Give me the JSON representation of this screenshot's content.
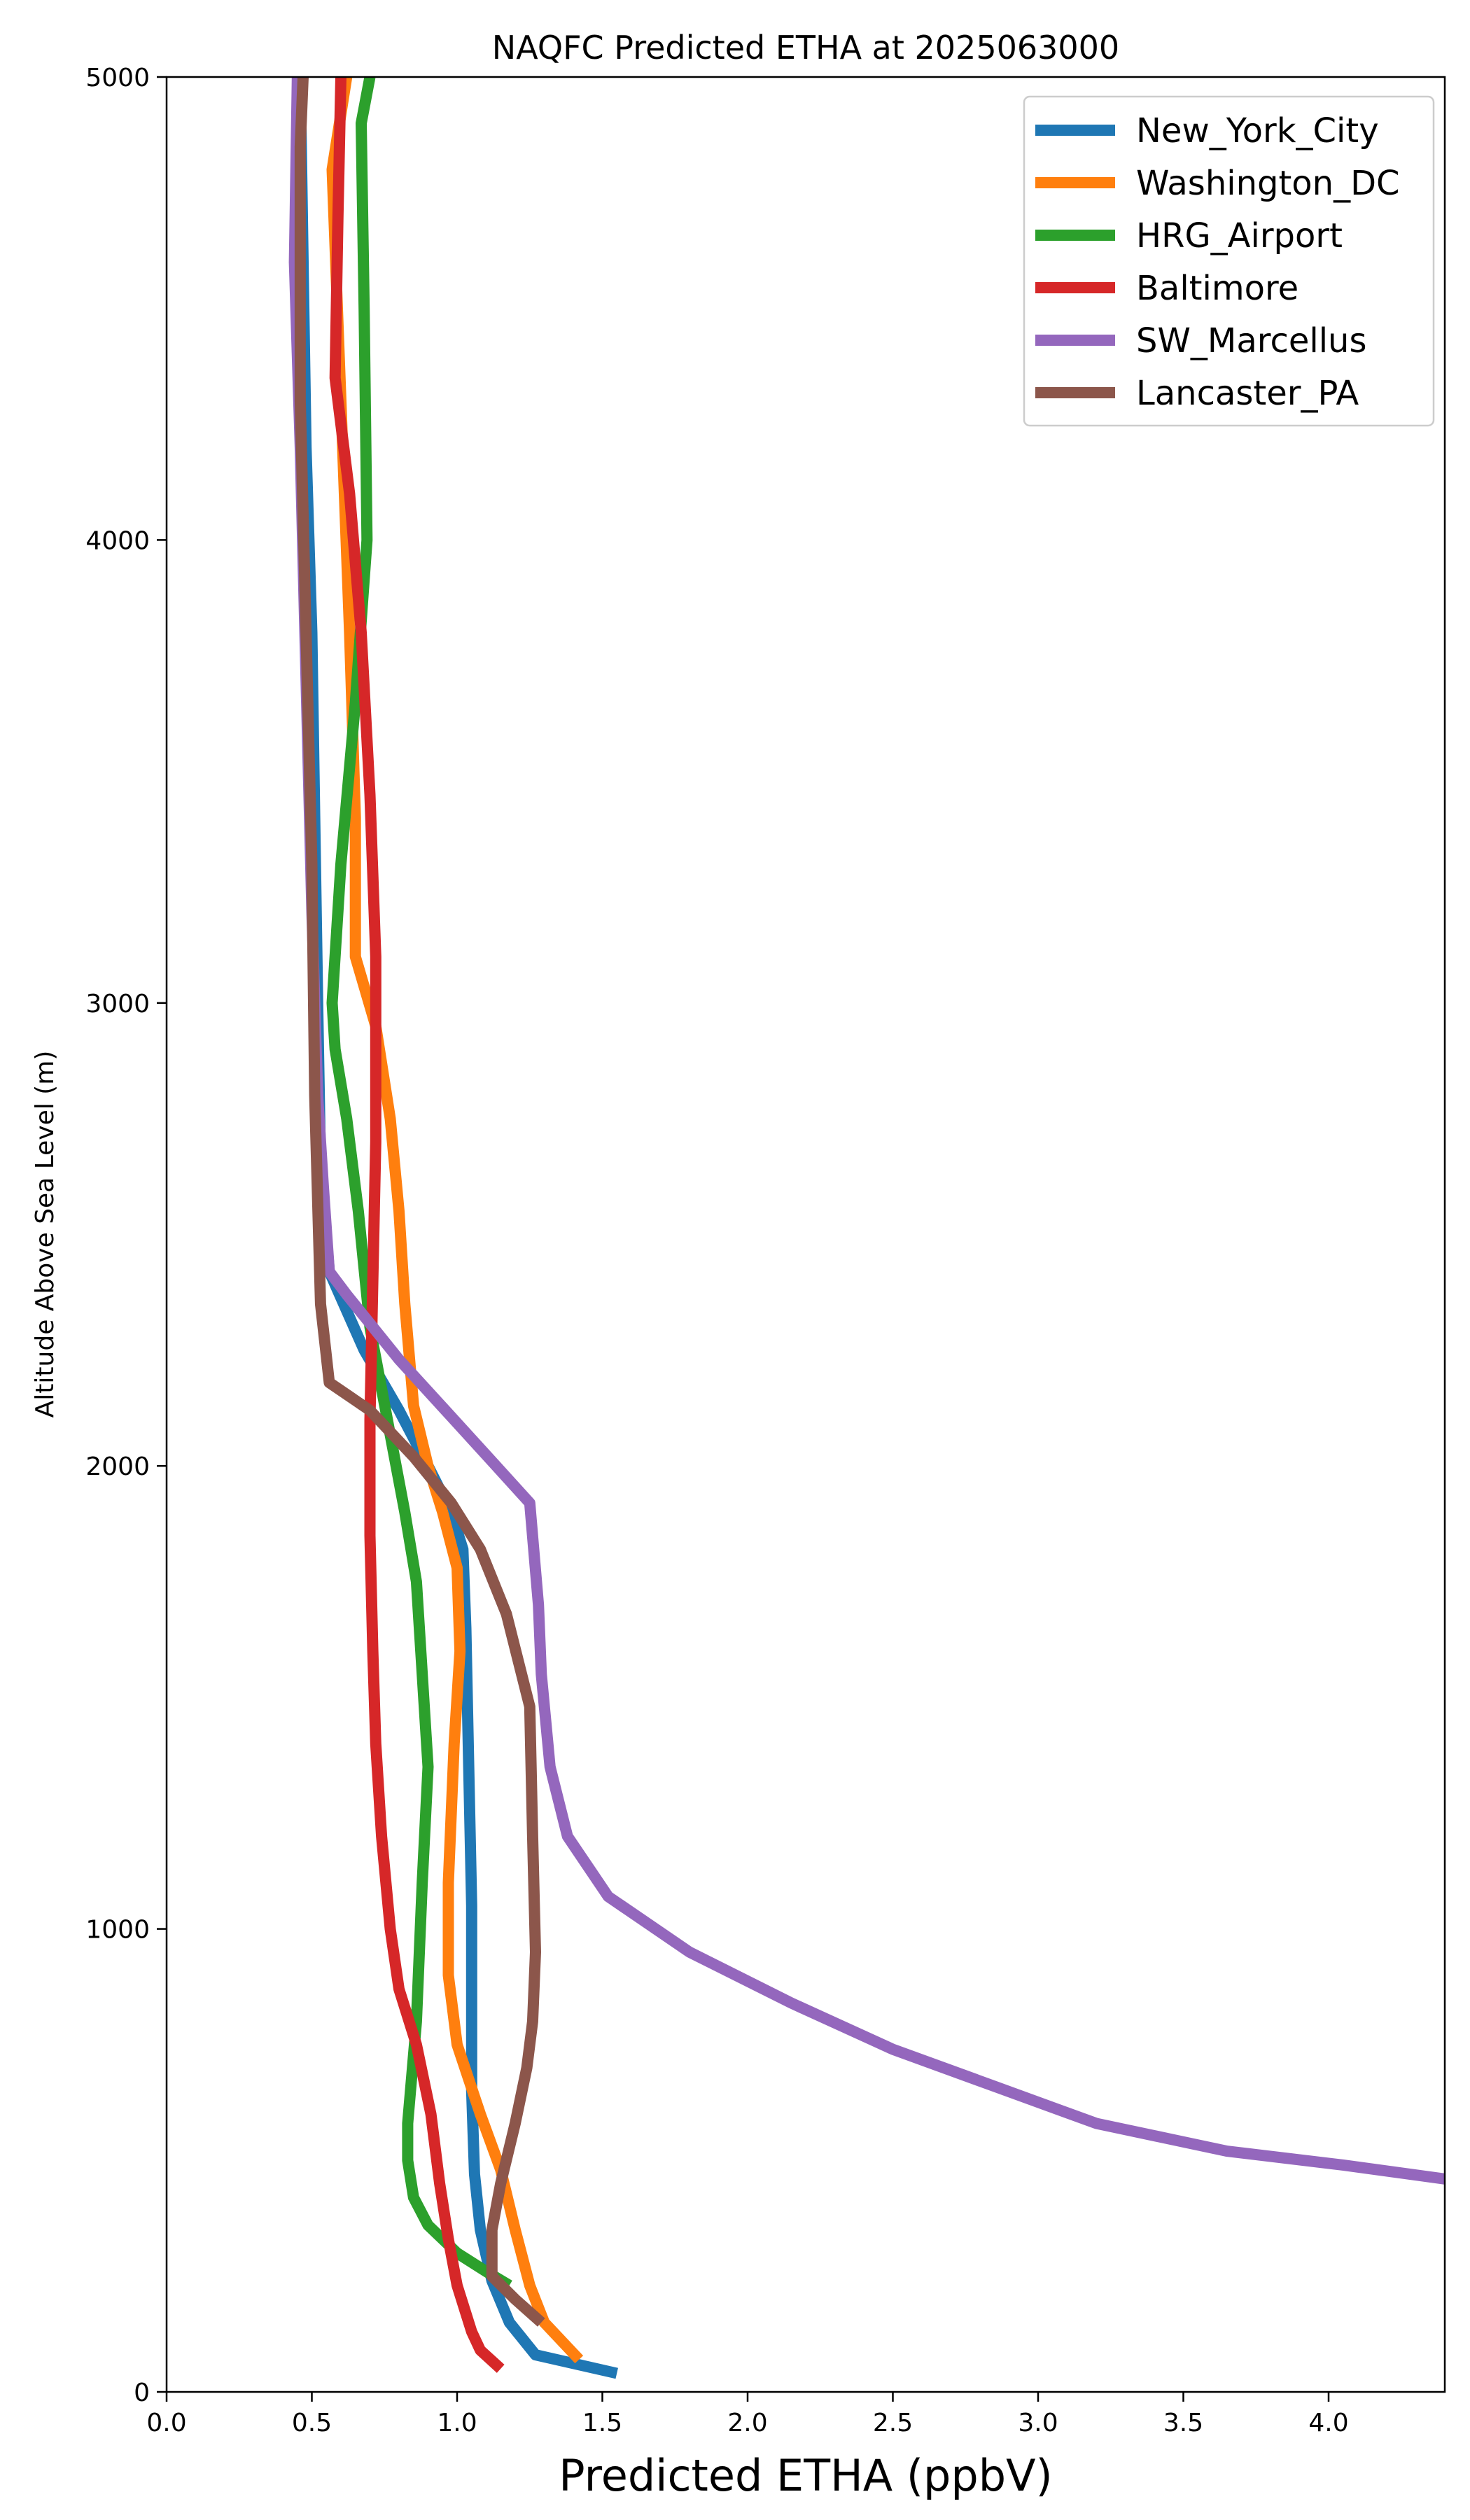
{
  "chart_data": {
    "type": "line",
    "title": "NAQFC Predicted ETHA at 2025063000",
    "xlabel": "Predicted ETHA (ppbV)",
    "ylabel": "Altitude Above Sea Level (m)",
    "xlim": [
      0,
      4.4
    ],
    "ylim": [
      0,
      5000
    ],
    "xticks": [
      "0.0",
      "0.5",
      "1.0",
      "1.5",
      "2.0",
      "2.5",
      "3.0",
      "3.5",
      "4.0"
    ],
    "yticks": [
      "0",
      "1000",
      "2000",
      "3000",
      "4000",
      "5000"
    ],
    "grid": false,
    "legend_position": "top-right",
    "series": [
      {
        "name": "New_York_City",
        "color": "#1f77b4",
        "points": [
          [
            1.55,
            40
          ],
          [
            1.27,
            80
          ],
          [
            1.18,
            150
          ],
          [
            1.12,
            240
          ],
          [
            1.08,
            350
          ],
          [
            1.06,
            470
          ],
          [
            1.05,
            650
          ],
          [
            1.05,
            850
          ],
          [
            1.05,
            1050
          ],
          [
            1.04,
            1350
          ],
          [
            1.03,
            1650
          ],
          [
            1.02,
            1820
          ],
          [
            0.98,
            1900
          ],
          [
            0.9,
            2000
          ],
          [
            0.8,
            2120
          ],
          [
            0.68,
            2250
          ],
          [
            0.56,
            2420
          ],
          [
            0.53,
            2650
          ],
          [
            0.52,
            3000
          ],
          [
            0.51,
            3400
          ],
          [
            0.5,
            3800
          ],
          [
            0.48,
            4200
          ],
          [
            0.47,
            4600
          ],
          [
            0.46,
            5000
          ]
        ]
      },
      {
        "name": "Washington_DC",
        "color": "#ff7f0e",
        "points": [
          [
            1.42,
            70
          ],
          [
            1.3,
            150
          ],
          [
            1.25,
            230
          ],
          [
            1.2,
            350
          ],
          [
            1.15,
            480
          ],
          [
            1.08,
            600
          ],
          [
            1.0,
            750
          ],
          [
            0.97,
            900
          ],
          [
            0.97,
            1100
          ],
          [
            0.99,
            1400
          ],
          [
            1.01,
            1600
          ],
          [
            1.0,
            1780
          ],
          [
            0.95,
            1900
          ],
          [
            0.9,
            2000
          ],
          [
            0.85,
            2130
          ],
          [
            0.82,
            2350
          ],
          [
            0.8,
            2550
          ],
          [
            0.77,
            2750
          ],
          [
            0.72,
            2950
          ],
          [
            0.65,
            3100
          ],
          [
            0.65,
            3400
          ],
          [
            0.63,
            3800
          ],
          [
            0.6,
            4300
          ],
          [
            0.57,
            4800
          ],
          [
            0.62,
            5000
          ]
        ]
      },
      {
        "name": "HRG_Airport",
        "color": "#2ca02c",
        "points": [
          [
            1.18,
            230
          ],
          [
            1.1,
            260
          ],
          [
            1.0,
            300
          ],
          [
            0.9,
            360
          ],
          [
            0.85,
            420
          ],
          [
            0.83,
            500
          ],
          [
            0.83,
            580
          ],
          [
            0.86,
            800
          ],
          [
            0.88,
            1100
          ],
          [
            0.9,
            1350
          ],
          [
            0.88,
            1550
          ],
          [
            0.86,
            1750
          ],
          [
            0.82,
            1900
          ],
          [
            0.76,
            2100
          ],
          [
            0.7,
            2300
          ],
          [
            0.66,
            2550
          ],
          [
            0.62,
            2750
          ],
          [
            0.58,
            2900
          ],
          [
            0.57,
            3000
          ],
          [
            0.6,
            3300
          ],
          [
            0.65,
            3650
          ],
          [
            0.69,
            4000
          ],
          [
            0.68,
            4500
          ],
          [
            0.67,
            4900
          ],
          [
            0.7,
            5000
          ]
        ]
      },
      {
        "name": "Baltimore",
        "color": "#d62728",
        "points": [
          [
            1.15,
            50
          ],
          [
            1.08,
            90
          ],
          [
            1.05,
            130
          ],
          [
            1.0,
            230
          ],
          [
            0.97,
            330
          ],
          [
            0.94,
            450
          ],
          [
            0.91,
            600
          ],
          [
            0.86,
            750
          ],
          [
            0.8,
            870
          ],
          [
            0.77,
            1000
          ],
          [
            0.74,
            1200
          ],
          [
            0.72,
            1400
          ],
          [
            0.71,
            1600
          ],
          [
            0.7,
            1850
          ],
          [
            0.7,
            2100
          ],
          [
            0.71,
            2400
          ],
          [
            0.72,
            2700
          ],
          [
            0.72,
            3100
          ],
          [
            0.7,
            3450
          ],
          [
            0.67,
            3800
          ],
          [
            0.63,
            4100
          ],
          [
            0.58,
            4350
          ],
          [
            0.59,
            4700
          ],
          [
            0.6,
            5000
          ]
        ]
      },
      {
        "name": "SW_Marcellus",
        "color": "#9467bd",
        "points": [
          [
            4.4,
            460
          ],
          [
            4.05,
            490
          ],
          [
            3.65,
            520
          ],
          [
            3.2,
            580
          ],
          [
            2.85,
            660
          ],
          [
            2.5,
            740
          ],
          [
            2.15,
            840
          ],
          [
            1.8,
            950
          ],
          [
            1.52,
            1070
          ],
          [
            1.38,
            1200
          ],
          [
            1.32,
            1350
          ],
          [
            1.29,
            1550
          ],
          [
            1.28,
            1700
          ],
          [
            1.25,
            1920
          ],
          [
            1.12,
            2010
          ],
          [
            0.96,
            2120
          ],
          [
            0.8,
            2230
          ],
          [
            0.62,
            2370
          ],
          [
            0.56,
            2420
          ],
          [
            0.54,
            2600
          ],
          [
            0.52,
            2800
          ],
          [
            0.5,
            3200
          ],
          [
            0.48,
            3700
          ],
          [
            0.46,
            4200
          ],
          [
            0.44,
            4600
          ],
          [
            0.45,
            5000
          ]
        ]
      },
      {
        "name": "Lancaster_PA",
        "color": "#8c564b",
        "points": [
          [
            1.29,
            150
          ],
          [
            1.2,
            200
          ],
          [
            1.12,
            250
          ],
          [
            1.12,
            350
          ],
          [
            1.15,
            450
          ],
          [
            1.2,
            580
          ],
          [
            1.24,
            700
          ],
          [
            1.26,
            800
          ],
          [
            1.27,
            950
          ],
          [
            1.26,
            1200
          ],
          [
            1.25,
            1480
          ],
          [
            1.17,
            1680
          ],
          [
            1.08,
            1820
          ],
          [
            0.98,
            1920
          ],
          [
            0.85,
            2020
          ],
          [
            0.7,
            2120
          ],
          [
            0.56,
            2180
          ],
          [
            0.53,
            2350
          ],
          [
            0.51,
            2800
          ],
          [
            0.5,
            3300
          ],
          [
            0.48,
            3800
          ],
          [
            0.46,
            4300
          ],
          [
            0.46,
            4850
          ],
          [
            0.47,
            5000
          ]
        ]
      }
    ]
  }
}
